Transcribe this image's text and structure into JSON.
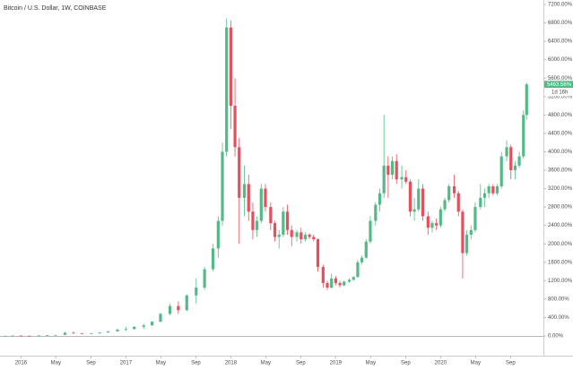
{
  "chart_data": {
    "type": "candlestick",
    "title": "Bitcoin / U.S. Dollar, 1W, COINBASE",
    "up_color": "#53b987",
    "down_color": "#eb4d5c",
    "xlim": [
      2015.8,
      2020.98
    ],
    "ylim": [
      -428,
      7297
    ],
    "xticks": [
      {
        "value": 2016.0,
        "label": "2016"
      },
      {
        "value": 2016.333,
        "label": "May"
      },
      {
        "value": 2016.667,
        "label": "Sep"
      },
      {
        "value": 2017.0,
        "label": "2017"
      },
      {
        "value": 2017.333,
        "label": "May"
      },
      {
        "value": 2017.667,
        "label": "Sep"
      },
      {
        "value": 2018.0,
        "label": "2018"
      },
      {
        "value": 2018.333,
        "label": "May"
      },
      {
        "value": 2018.667,
        "label": "Sep"
      },
      {
        "value": 2019.0,
        "label": "2019"
      },
      {
        "value": 2019.333,
        "label": "May"
      },
      {
        "value": 2019.667,
        "label": "Sep"
      },
      {
        "value": 2020.0,
        "label": "2020"
      },
      {
        "value": 2020.333,
        "label": "May"
      },
      {
        "value": 2020.667,
        "label": "Sep"
      }
    ],
    "yticks": [
      {
        "value": 0,
        "label": "0.00%"
      },
      {
        "value": 400,
        "label": "400.00%"
      },
      {
        "value": 800,
        "label": "800.00%"
      },
      {
        "value": 1200,
        "label": "1200.00%"
      },
      {
        "value": 1600,
        "label": "1600.00%"
      },
      {
        "value": 2000,
        "label": "2000.00%"
      },
      {
        "value": 2400,
        "label": "2400.00%"
      },
      {
        "value": 2800,
        "label": "2800.00%"
      },
      {
        "value": 3200,
        "label": "3200.00%"
      },
      {
        "value": 3600,
        "label": "3600.00%"
      },
      {
        "value": 4000,
        "label": "4000.00%"
      },
      {
        "value": 4400,
        "label": "4400.00%"
      },
      {
        "value": 4800,
        "label": "4800.00%"
      },
      {
        "value": 5200,
        "label": "5200.00%"
      },
      {
        "value": 5600,
        "label": "5600.00%"
      },
      {
        "value": 6000,
        "label": "6000.00%"
      },
      {
        "value": 6400,
        "label": "6400.00%"
      },
      {
        "value": 6800,
        "label": "6800.00%"
      },
      {
        "value": 7200,
        "label": "7200.00%"
      }
    ],
    "last_value": {
      "value": 5463.56,
      "label": "5463.56%"
    },
    "countdown": "1d 16h",
    "x": [
      2015.85,
      2015.92,
      2016.0,
      2016.08,
      2016.17,
      2016.25,
      2016.33,
      2016.42,
      2016.5,
      2016.58,
      2016.67,
      2016.75,
      2016.83,
      2016.92,
      2017.0,
      2017.08,
      2017.17,
      2017.25,
      2017.33,
      2017.42,
      2017.5,
      2017.58,
      2017.67,
      2017.75,
      2017.83,
      2017.88,
      2017.92,
      2017.96,
      2018.0,
      2018.04,
      2018.08,
      2018.13,
      2018.17,
      2018.21,
      2018.25,
      2018.29,
      2018.33,
      2018.38,
      2018.42,
      2018.46,
      2018.5,
      2018.54,
      2018.58,
      2018.63,
      2018.67,
      2018.71,
      2018.75,
      2018.79,
      2018.83,
      2018.88,
      2018.92,
      2018.96,
      2019.0,
      2019.04,
      2019.08,
      2019.13,
      2019.17,
      2019.21,
      2019.25,
      2019.29,
      2019.33,
      2019.38,
      2019.42,
      2019.46,
      2019.5,
      2019.54,
      2019.58,
      2019.63,
      2019.67,
      2019.71,
      2019.75,
      2019.79,
      2019.83,
      2019.88,
      2019.92,
      2019.96,
      2020.0,
      2020.04,
      2020.08,
      2020.13,
      2020.17,
      2020.21,
      2020.25,
      2020.29,
      2020.33,
      2020.38,
      2020.42,
      2020.46,
      2020.5,
      2020.54,
      2020.58,
      2020.63,
      2020.67,
      2020.71,
      2020.75,
      2020.79,
      2020.82
    ],
    "open": [
      0,
      3,
      8,
      5,
      2,
      12,
      15,
      22,
      70,
      60,
      50,
      55,
      75,
      100,
      140,
      150,
      200,
      230,
      310,
      480,
      650,
      560,
      880,
      1050,
      1450,
      1900,
      2500,
      4000,
      6700,
      5000,
      4100,
      3000,
      3300,
      2700,
      2300,
      2500,
      3200,
      2800,
      2450,
      2150,
      2200,
      2700,
      2300,
      2150,
      2250,
      2100,
      2200,
      2150,
      2100,
      1500,
      1150,
      1050,
      1250,
      1150,
      1100,
      1180,
      1220,
      1280,
      1600,
      1700,
      2050,
      2500,
      2850,
      3100,
      3700,
      3500,
      3800,
      3400,
      3450,
      3350,
      2700,
      2750,
      3200,
      2600,
      2350,
      2450,
      2400,
      2750,
      2950,
      3250,
      3100,
      2700,
      1800,
      2200,
      2300,
      2800,
      3000,
      3100,
      3250,
      3100,
      3250,
      3900,
      4100,
      3600,
      3700,
      3900,
      4800
    ],
    "high": [
      8,
      12,
      14,
      10,
      15,
      18,
      25,
      90,
      100,
      65,
      60,
      80,
      110,
      150,
      200,
      210,
      260,
      320,
      500,
      700,
      750,
      900,
      1250,
      1500,
      2000,
      2600,
      4200,
      6900,
      6850,
      5600,
      4300,
      3700,
      3500,
      2900,
      2600,
      3300,
      3300,
      2900,
      2500,
      2300,
      2800,
      2850,
      2400,
      2300,
      2350,
      2250,
      2230,
      2200,
      2120,
      1550,
      1200,
      1350,
      1300,
      1200,
      1200,
      1250,
      1300,
      1650,
      1750,
      2100,
      2600,
      2900,
      3200,
      4800,
      3900,
      3900,
      3950,
      3700,
      3600,
      3400,
      3000,
      3400,
      3300,
      2700,
      2500,
      2550,
      2800,
      3000,
      3300,
      3500,
      3150,
      2750,
      2300,
      2400,
      2900,
      3300,
      3200,
      3300,
      3300,
      3300,
      4000,
      4250,
      4150,
      3800,
      4000,
      4900,
      5500
    ],
    "low": [
      -5,
      -2,
      2,
      -3,
      0,
      8,
      12,
      20,
      45,
      40,
      45,
      52,
      70,
      95,
      110,
      140,
      150,
      220,
      300,
      450,
      480,
      540,
      700,
      1000,
      1400,
      1700,
      2400,
      3900,
      4500,
      3900,
      2000,
      2600,
      2500,
      2100,
      2150,
      2450,
      2700,
      2300,
      2050,
      1900,
      2150,
      2200,
      1950,
      2050,
      2000,
      2050,
      2100,
      2050,
      1400,
      1050,
      1000,
      1030,
      1100,
      1050,
      1080,
      1150,
      1200,
      1270,
      1550,
      1680,
      2000,
      2400,
      2700,
      3000,
      3000,
      3400,
      3300,
      3200,
      3300,
      2600,
      2500,
      2700,
      2500,
      2200,
      2250,
      2300,
      2350,
      2700,
      2900,
      3000,
      2600,
      1250,
      1750,
      2100,
      2250,
      2750,
      2800,
      3000,
      3050,
      3050,
      3200,
      3800,
      3400,
      3400,
      3650,
      3850,
      4700
    ],
    "close": [
      3,
      8,
      5,
      2,
      12,
      15,
      22,
      70,
      60,
      50,
      55,
      75,
      100,
      140,
      150,
      200,
      230,
      310,
      480,
      650,
      560,
      880,
      1050,
      1450,
      1900,
      2500,
      4000,
      6700,
      5000,
      4100,
      3000,
      3300,
      2700,
      2300,
      2500,
      3200,
      2800,
      2450,
      2150,
      2200,
      2700,
      2300,
      2150,
      2250,
      2100,
      2200,
      2150,
      2100,
      1500,
      1150,
      1050,
      1250,
      1150,
      1100,
      1180,
      1220,
      1280,
      1600,
      1700,
      2050,
      2500,
      2850,
      3100,
      3700,
      3500,
      3800,
      3400,
      3450,
      3350,
      2700,
      2750,
      3200,
      2600,
      2350,
      2450,
      2400,
      2750,
      2950,
      3250,
      3100,
      2700,
      1800,
      2200,
      2300,
      2800,
      3000,
      3100,
      3250,
      3100,
      3250,
      3900,
      4100,
      3600,
      3700,
      3900,
      4800,
      5463.56
    ]
  }
}
